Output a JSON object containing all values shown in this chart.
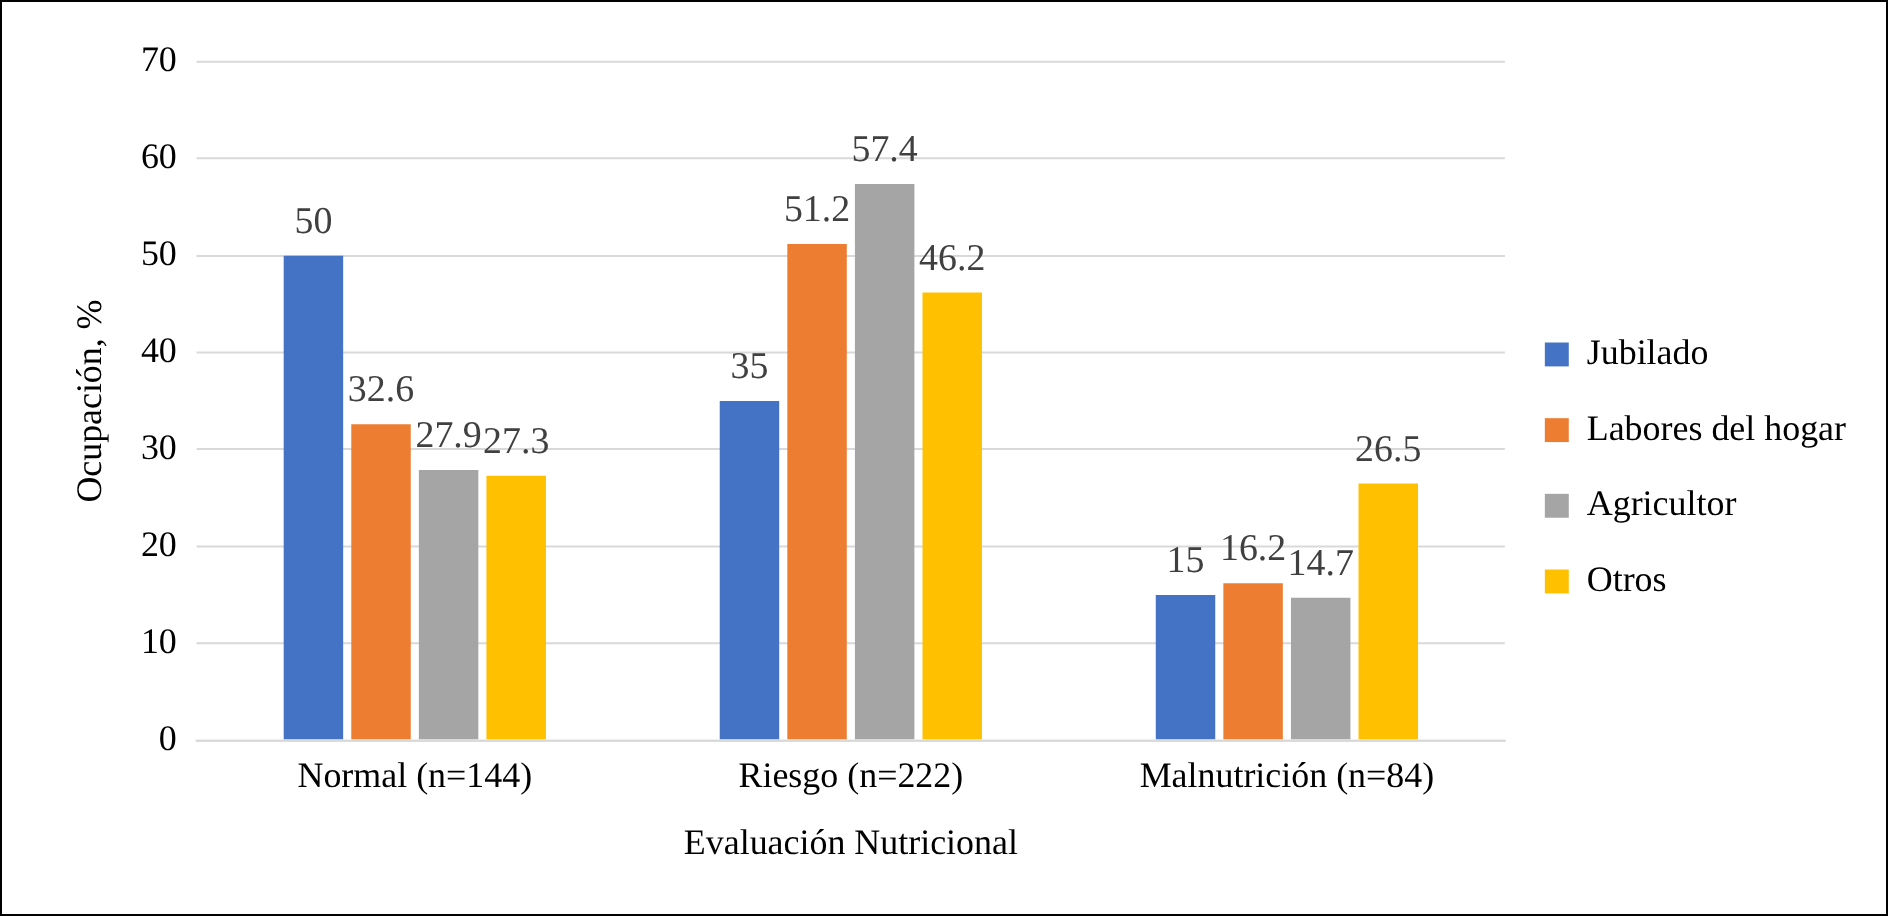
{
  "chart_data": {
    "type": "bar",
    "xlabel": "Evaluación Nutricional",
    "ylabel": "Ocupación, %",
    "categories": [
      "Normal (n=144)",
      "Riesgo (n=222)",
      "Malnutrición (n=84)"
    ],
    "series": [
      {
        "name": "Jubilado",
        "color": "#4472c4",
        "values": [
          50,
          35,
          15
        ]
      },
      {
        "name": "Labores del hogar",
        "color": "#ed7d31",
        "values": [
          32.6,
          51.2,
          16.2
        ]
      },
      {
        "name": "Agricultor",
        "color": "#a5a5a5",
        "values": [
          27.9,
          57.4,
          14.7
        ]
      },
      {
        "name": "Otros",
        "color": "#ffc000",
        "values": [
          27.3,
          46.2,
          26.5
        ]
      }
    ],
    "ylim": [
      0,
      70
    ],
    "yticks": [
      0,
      10,
      20,
      30,
      40,
      50,
      60,
      70
    ],
    "grid": "y",
    "legend": "right",
    "data_labels": true
  }
}
